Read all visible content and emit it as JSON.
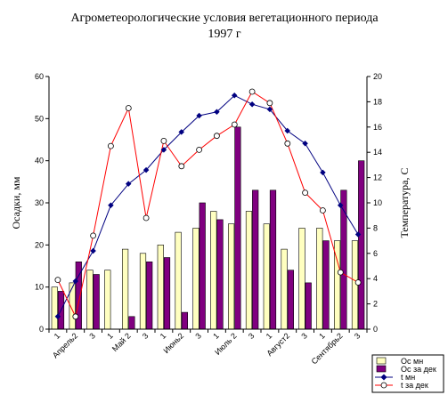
{
  "chart_data": {
    "type": "bar",
    "title": "Агрометеорологические условия вегетационного периода",
    "subtitle": "1997 г",
    "ylabel": "Осадки, мм",
    "y2label": "Температура, С",
    "ylim": [
      0,
      60
    ],
    "yticks": [
      0,
      10,
      20,
      30,
      40,
      50,
      60
    ],
    "y2lim": [
      0,
      20
    ],
    "y2ticks": [
      0,
      2,
      4,
      6,
      8,
      10,
      12,
      14,
      16,
      18,
      20
    ],
    "grid": false,
    "legend_position": "bottom-right",
    "categories": [
      "1",
      "Апрель2",
      "3",
      "1",
      "Май 2",
      "3",
      "1",
      "Июнь2",
      "3",
      "1",
      "Июль 2",
      "3",
      "1",
      "Август2",
      "3",
      "1",
      "Сентябрь2",
      "3"
    ],
    "series": [
      {
        "name": "Ос мн",
        "kind": "bar",
        "axis": "left",
        "color": "#ffffc0",
        "values": [
          10,
          11,
          14,
          14,
          19,
          18,
          20,
          23,
          24,
          28,
          25,
          28,
          25,
          19,
          24,
          24,
          21,
          21
        ]
      },
      {
        "name": "Ос за дек",
        "kind": "bar",
        "axis": "left",
        "color": "#800080",
        "values": [
          9,
          16,
          13,
          0,
          3,
          16,
          17,
          4,
          30,
          26,
          48,
          33,
          33,
          14,
          11,
          21,
          33,
          40
        ]
      },
      {
        "name": "t мн",
        "kind": "line",
        "axis": "right",
        "color": "#000080",
        "values": [
          1.0,
          3.8,
          6.2,
          9.8,
          11.5,
          12.6,
          14.2,
          15.6,
          16.9,
          17.2,
          18.5,
          17.8,
          17.4,
          15.7,
          14.7,
          12.4,
          9.8,
          7.5
        ]
      },
      {
        "name": "t за дек",
        "kind": "line",
        "axis": "right",
        "color": "#ff0000",
        "values": [
          3.9,
          1.0,
          7.4,
          14.5,
          17.5,
          8.8,
          14.9,
          12.9,
          14.2,
          15.3,
          16.2,
          18.8,
          17.9,
          14.7,
          10.8,
          9.4,
          4.5,
          3.7
        ]
      }
    ]
  }
}
